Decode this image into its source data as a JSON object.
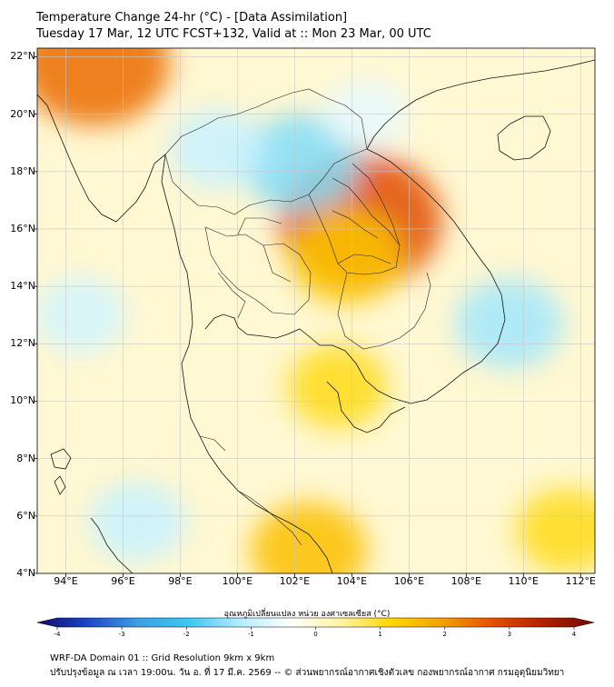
{
  "header": {
    "line1": "Temperature Change 24-hr (°C) - [Data Assimilation]",
    "line2": "Tuesday 17 Mar, 12 UTC FCST+132, Valid at :: Mon 23 Mar, 00 UTC"
  },
  "axes": {
    "lat_labels": [
      "22°N",
      "20°N",
      "18°N",
      "16°N",
      "14°N",
      "12°N",
      "10°N",
      "8°N",
      "6°N",
      "4°N"
    ],
    "lon_labels": [
      "94°E",
      "96°E",
      "98°E",
      "100°E",
      "102°E",
      "104°E",
      "106°E",
      "108°E",
      "110°E",
      "112°E"
    ],
    "lat_values": [
      22,
      20,
      18,
      16,
      14,
      12,
      10,
      8,
      6,
      4
    ],
    "lon_values": [
      94,
      96,
      98,
      100,
      102,
      104,
      106,
      108,
      110,
      112
    ],
    "lat_range": [
      4,
      22.3
    ],
    "lon_range": [
      93,
      112.5
    ]
  },
  "field": {
    "variable": "24-hr temperature change",
    "unit": "°C",
    "features": [
      {
        "name": "warm-anomaly-laos-cambodia",
        "lon": 104.3,
        "lat": 16.3,
        "value": 2.6
      },
      {
        "name": "warm-anomaly-northeast-thailand",
        "lon": 103.8,
        "lat": 15.0,
        "value": 1.3
      },
      {
        "name": "warm-anomaly-myanmar-north",
        "lon": 95.0,
        "lat": 21.8,
        "value": 2.3
      },
      {
        "name": "warm-anomaly-gulf-thailand",
        "lon": 103.5,
        "lat": 10.5,
        "value": 1.0
      },
      {
        "name": "warm-anomaly-malaysia-south",
        "lon": 102.5,
        "lat": 4.8,
        "value": 1.4
      },
      {
        "name": "warm-anomaly-south-china-sea",
        "lon": 111.5,
        "lat": 5.5,
        "value": 1.0
      },
      {
        "name": "cold-anomaly-north-laos",
        "lon": 102.2,
        "lat": 18.3,
        "value": -1.4
      },
      {
        "name": "cold-anomaly-myanmar",
        "lon": 99.3,
        "lat": 18.8,
        "value": -0.9
      },
      {
        "name": "cold-anomaly-vietnam-coast",
        "lon": 109.5,
        "lat": 12.7,
        "value": -1.2
      },
      {
        "name": "cold-anomaly-andaman",
        "lon": 94.5,
        "lat": 13.0,
        "value": -0.8
      },
      {
        "name": "cold-anomaly-gulf-bengal-south",
        "lon": 96.5,
        "lat": 5.8,
        "value": -0.9
      },
      {
        "name": "cold-anomaly-laos-north",
        "lon": 104.5,
        "lat": 20.0,
        "value": -0.6
      }
    ]
  },
  "colorbar": {
    "title": "อุณหภูมิเปลี่ยนแปลง หน่วย องศาเซลเซียส (°C)",
    "ticks": [
      "-4",
      "-3",
      "-2",
      "-1",
      "0",
      "1",
      "2",
      "3",
      "4"
    ],
    "min": -4,
    "max": 4,
    "colors": [
      "#0a0a6e",
      "#1e46c8",
      "#3ca0e6",
      "#3cc8f0",
      "#b4ecff",
      "#ffffff",
      "#fff5a0",
      "#ffd700",
      "#f5a000",
      "#e65000",
      "#b41e00",
      "#6e0a00"
    ]
  },
  "footer": {
    "line1": "WRF-DA Domain 01 :: Grid Resolution 9km x 9km",
    "line2": "ปรับปรุงข้อมูล ณ เวลา 19:00น. วัน อ. ที่ 17 มี.ค. 2569 -- © ส่วนพยากรณ์อากาศเชิงตัวเลข กองพยากรณ์อากาศ กรมอุตุนิยมวิทยา"
  }
}
